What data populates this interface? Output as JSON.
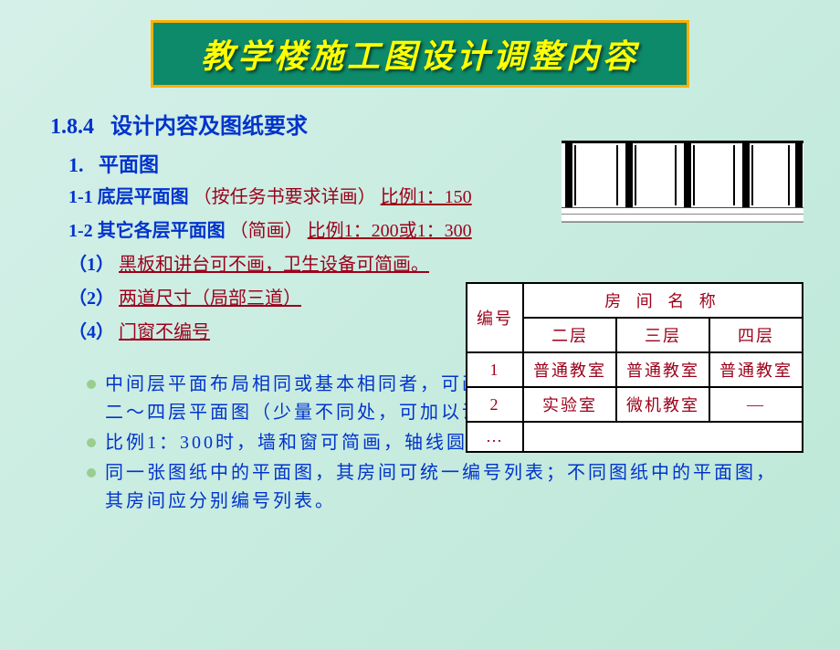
{
  "title": "教学楼施工图设计调整内容",
  "section_no": "1.8.4",
  "section_title": "设计内容及图纸要求",
  "sub1_no": "1.",
  "sub1_title": "平面图",
  "line1_label": "1-1 底层平面图",
  "line1_paren": "（按任务书要求详画）",
  "line1_ratio": "比例1：150",
  "line2_label": "1-2 其它各层平面图",
  "line2_paren": "（简画）",
  "line2_ratio": "比例1：200或1：300",
  "note1_no": "（1）",
  "note1_text": "黑板和讲台可不画，卫生设备可简画。",
  "note2_no": "（2）",
  "note2_text": "两道尺寸（局部三道）",
  "note3_no": "（4）",
  "note3_text": "门窗不编号",
  "bullets": [
    "中间层平面布局相同或基本相同者，可画一个。如：二、三层平面图 或 二～四层平面图（少量不同处，可加以说明或画局部平面图）",
    "比例1：300时，墙和窗可简画，轴线圆圈直径可减小。",
    "同一张图纸中的平面图，其房间可统一编号列表；不同图纸中的平面图，其房间应分别编号列表。"
  ],
  "table": {
    "hdr_id": "编号",
    "hdr_room": "房 间 名 称",
    "cols": [
      "二层",
      "三层",
      "四层"
    ],
    "rows": [
      {
        "id": "1",
        "cells": [
          "普通教室",
          "普通教室",
          "普通教室"
        ]
      },
      {
        "id": "2",
        "cells": [
          "实验室",
          "微机教室",
          "—"
        ]
      },
      {
        "id": "…",
        "cells": [
          "",
          "",
          ""
        ]
      }
    ]
  },
  "colors": {
    "bg_grad_start": "#d5f0e8",
    "bg_grad_end": "#bde8d8",
    "banner_bg": "#0d8a6a",
    "banner_border": "#ffb000",
    "banner_text": "#ffff00",
    "body_blue": "#0033cc",
    "body_red": "#9c001a",
    "bullet_dot": "#9acd8f",
    "table_border": "#000000"
  },
  "diagram": {
    "bays": 4,
    "verticals_left": [
      4,
      70,
      134,
      198,
      256
    ],
    "thins": [
      14,
      60,
      80,
      124,
      144,
      188,
      208,
      248
    ]
  }
}
